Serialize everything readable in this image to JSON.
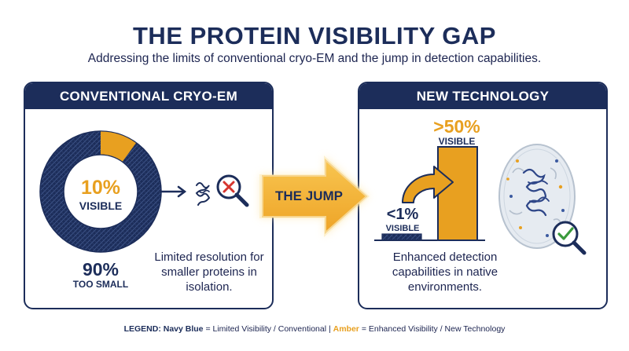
{
  "title": "THE PROTEIN VISIBILITY GAP",
  "subtitle": "Addressing the limits of conventional cryo-EM and the jump in detection capabilities.",
  "colors": {
    "navy": "#1c2d5a",
    "amber": "#e8a020",
    "white": "#ffffff"
  },
  "left_panel": {
    "header": "CONVENTIONAL CRYO-EM",
    "visible_fraction": 0.1,
    "visible_pct": "10%",
    "visible_label": "VISIBLE",
    "small_pct": "90%",
    "small_label": "TOO SMALL",
    "description": "Limited resolution for smaller proteins in isolation.",
    "icons": [
      "protein-icon",
      "magnifier-x-icon"
    ]
  },
  "jump": {
    "label": "THE JUMP"
  },
  "right_panel": {
    "header": "NEW TECHNOLOGY",
    "high_pct": "&gt;50%",
    "high_label": "VISIBLE",
    "low_pct": "&lt;1%",
    "low_label": "VISIBLE",
    "description": "Enhanced detection capabilities in native environments.",
    "icons": [
      "curved-arrow-icon",
      "cell-icon",
      "magnifier-check-icon"
    ]
  },
  "legend": {
    "prefix": "LEGEND:",
    "navy_term": "Navy Blue",
    "navy_text": "= Limited Visibility / Conventional  |",
    "amber_term": "Amber",
    "amber_text": "= Enhanced Visibility / New Technology"
  }
}
